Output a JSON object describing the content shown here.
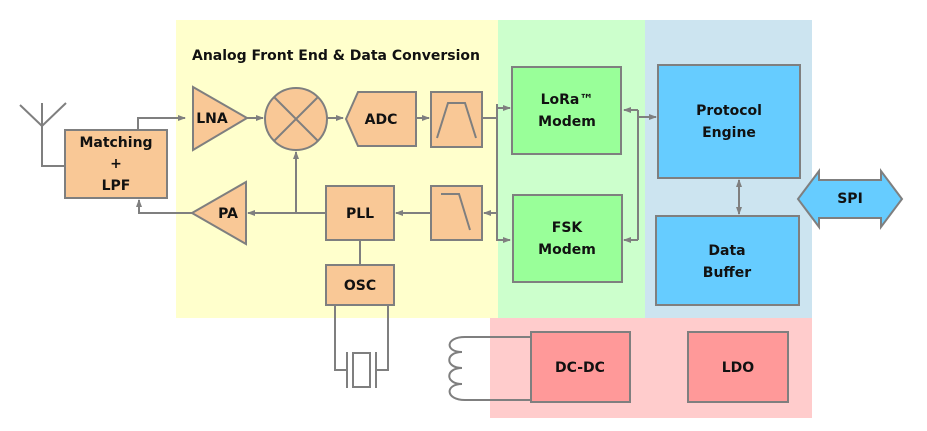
{
  "regions": {
    "analog": {
      "title": "Analog Front End & Data Conversion",
      "color": "#ffffcc"
    },
    "modem": {
      "color": "#ccffcc"
    },
    "digital": {
      "color": "#cce4f0"
    },
    "power": {
      "color": "#ffcccc"
    }
  },
  "blocks": {
    "matching": [
      "Matching",
      "+",
      "LPF"
    ],
    "lna": "LNA",
    "adc": "ADC",
    "pa": "PA",
    "pll": "PLL",
    "osc": "OSC",
    "lora": [
      "LoRa™",
      "Modem"
    ],
    "fsk": [
      "FSK",
      "Modem"
    ],
    "protocol": [
      "Protocol",
      "Engine"
    ],
    "buffer": [
      "Data",
      "Buffer"
    ],
    "spi": "SPI",
    "dcdc": "DC-DC",
    "ldo": "LDO"
  },
  "colors": {
    "rf": "#f9c896",
    "modem": "#99ff99",
    "digital": "#66ccff",
    "power": "#ff9999",
    "line": "#7f7f7f"
  }
}
